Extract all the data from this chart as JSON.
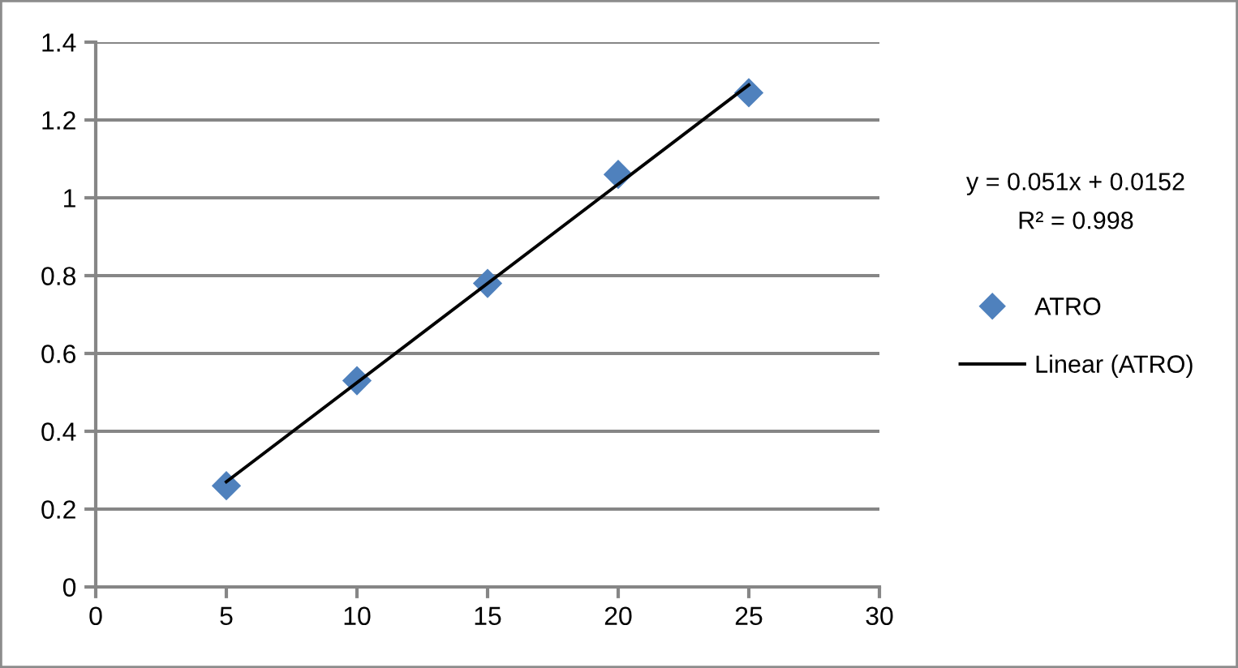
{
  "chart_data": {
    "type": "scatter",
    "series": [
      {
        "name": "ATRO",
        "color": "#4f81bd",
        "marker": "diamond",
        "x": [
          5,
          10,
          15,
          20,
          25
        ],
        "values": [
          0.26,
          0.53,
          0.78,
          1.06,
          1.27
        ]
      },
      {
        "name": "Linear (ATRO)",
        "type": "line",
        "color": "#000000",
        "marker": "none",
        "line_style": "solid",
        "x": [
          5,
          25
        ],
        "values": [
          0.27,
          1.29
        ]
      }
    ],
    "xlim": [
      0,
      30
    ],
    "xticks": [
      0,
      5,
      10,
      15,
      20,
      25,
      30
    ],
    "ylim": [
      0,
      1.4
    ],
    "yticks": [
      0,
      0.2,
      0.4,
      0.6,
      0.8,
      1,
      1.2,
      1.4
    ],
    "grid": "y",
    "legend": "right",
    "annotations": [
      "y = 0.051x + 0.0152",
      "R² = 0.998"
    ]
  }
}
